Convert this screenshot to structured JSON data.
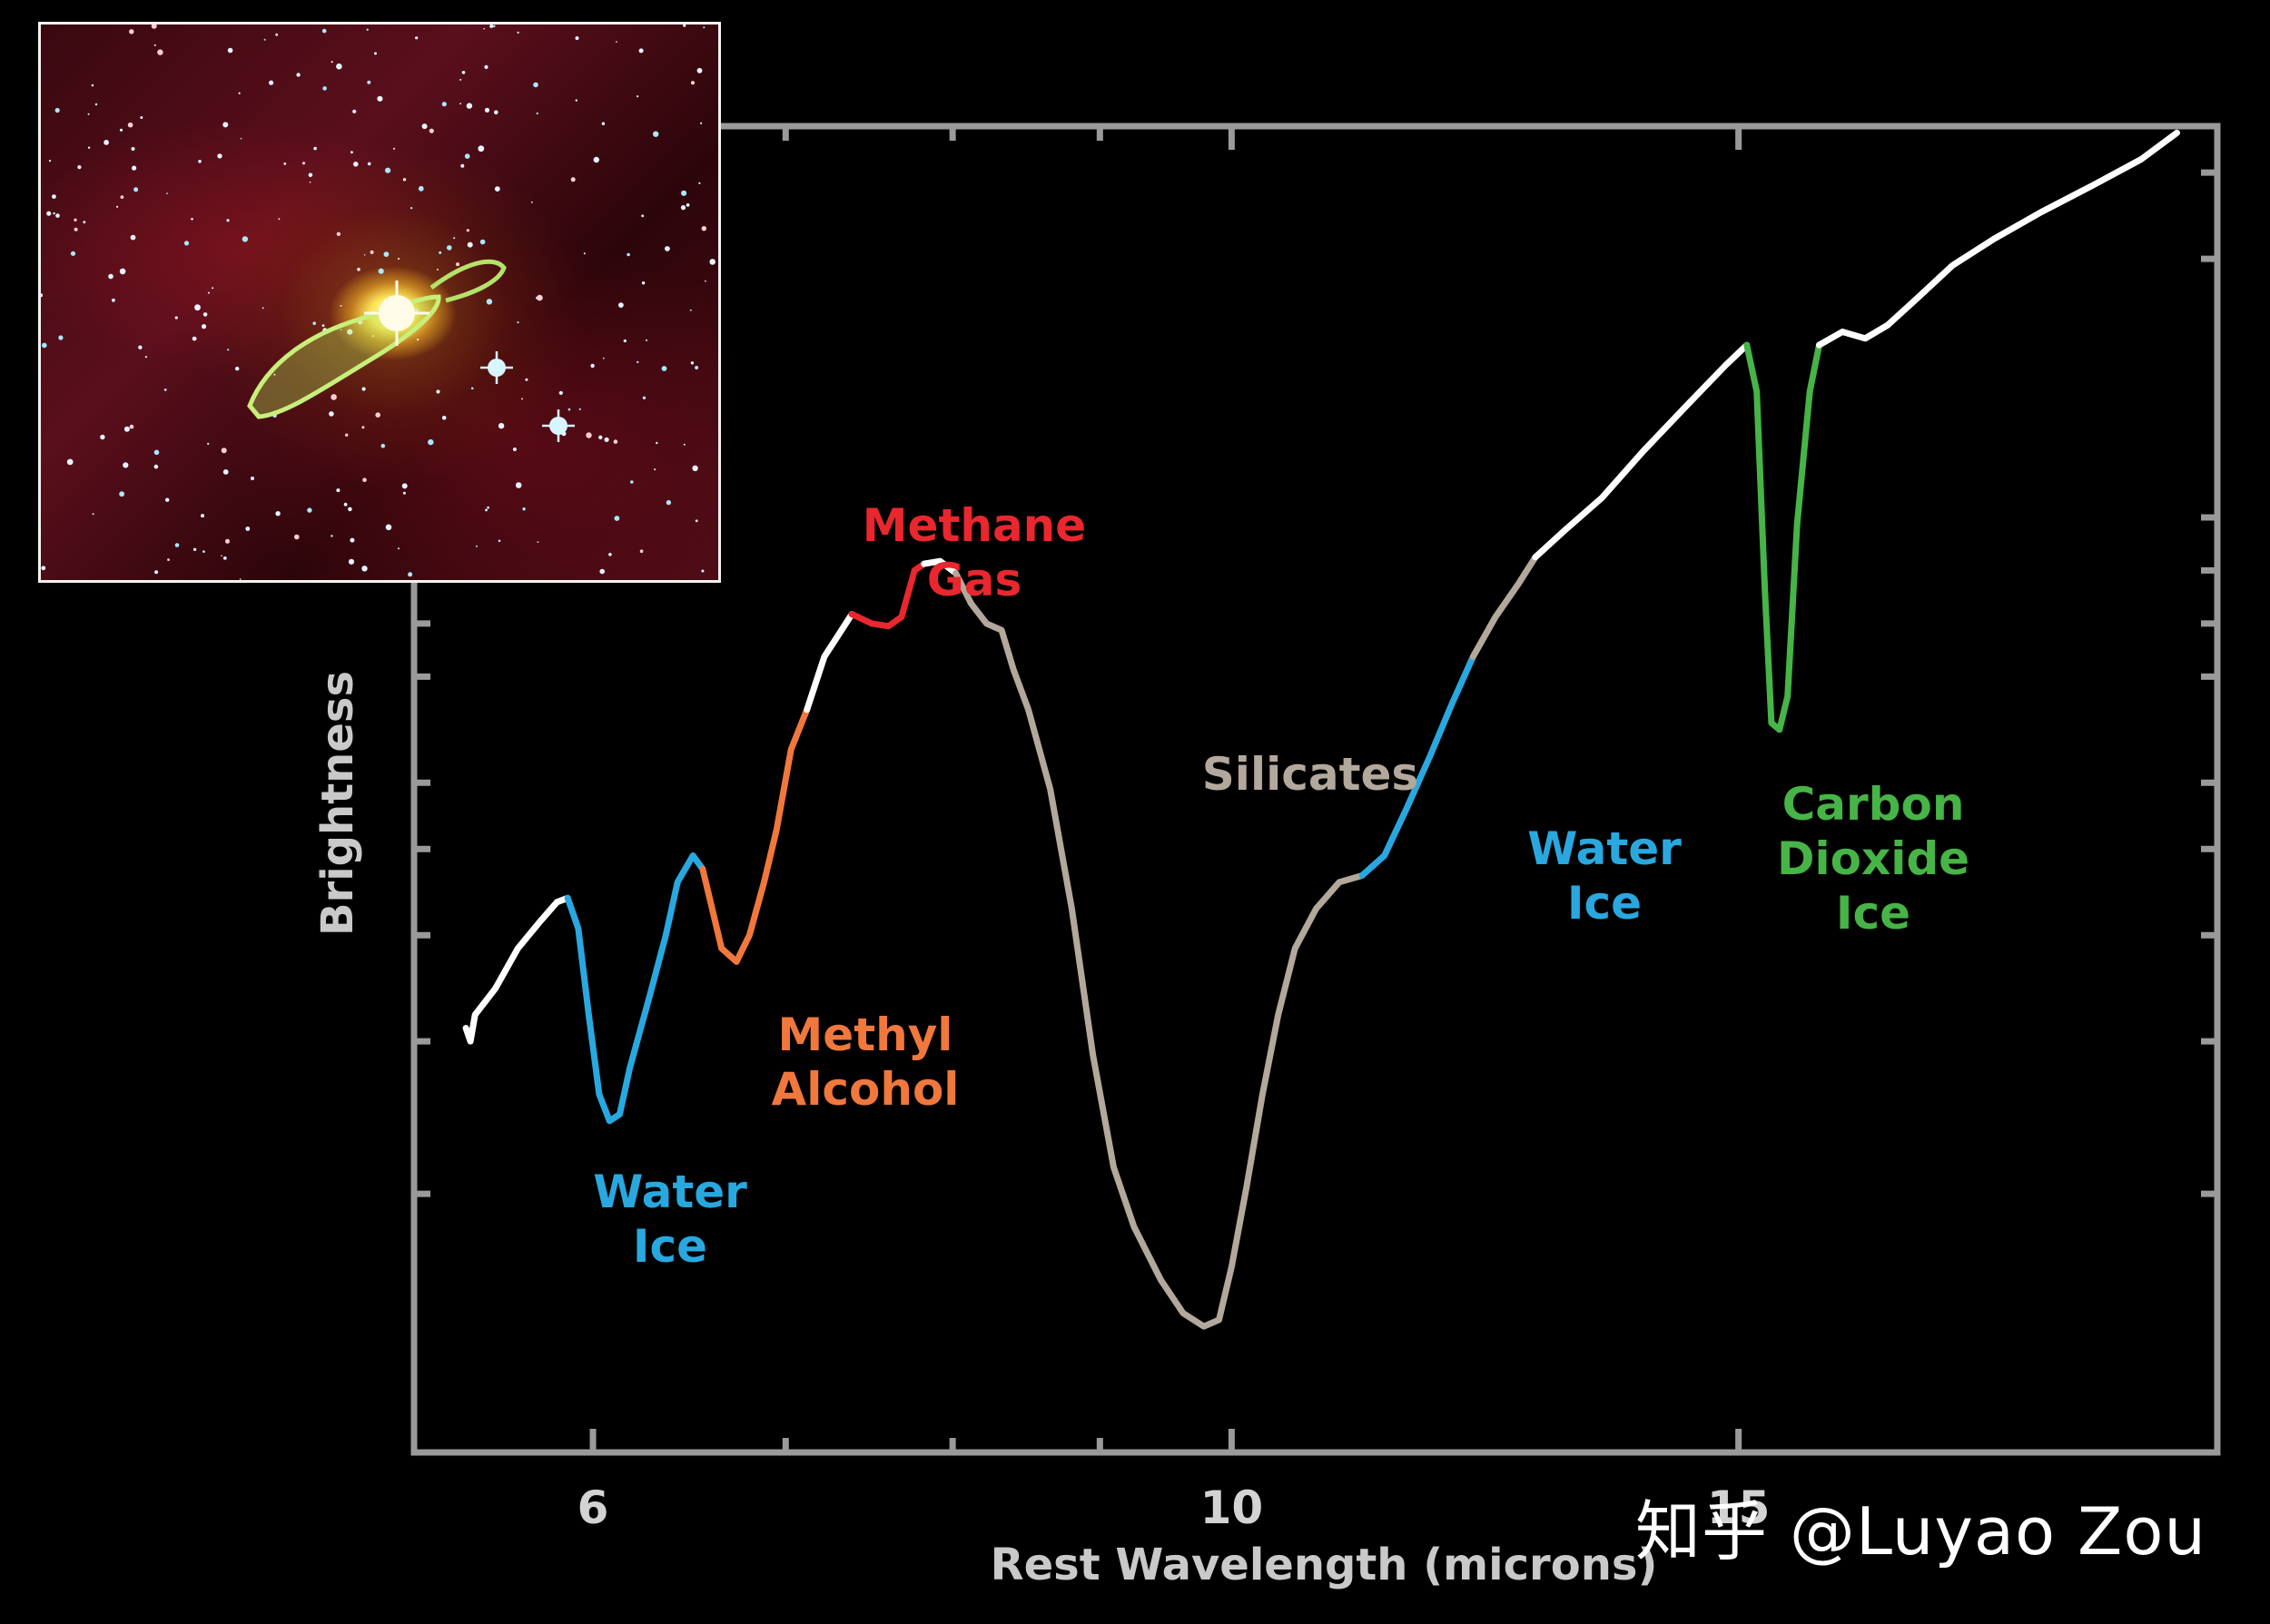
{
  "chart_data": {
    "type": "line",
    "xlabel": "Rest Wavelength (microns)",
    "ylabel": "Brightness",
    "xscale": "log",
    "xlim": [
      5.2,
      22
    ],
    "ylim": [
      0,
      100
    ],
    "grid": false,
    "axis_color": "#9a9a9a",
    "line_color_default": "#ffffff",
    "x_ticks": [
      {
        "value": 6,
        "label": "6"
      },
      {
        "value": 7,
        "label": ""
      },
      {
        "value": 8,
        "label": ""
      },
      {
        "value": 9,
        "label": ""
      },
      {
        "value": 10,
        "label": "10"
      },
      {
        "value": 15,
        "label": "15"
      }
    ],
    "y_ticks_right": [
      19.5,
      31,
      39,
      45.5,
      50.5,
      58.5,
      62.5,
      66.5,
      70.5,
      90,
      96.5
    ],
    "y_ticks_left": [
      19.5,
      31,
      39,
      45.5,
      50.5,
      58.5,
      62.5,
      66.5,
      70.5
    ],
    "series": [
      {
        "color": "#ffffff",
        "points": [
          [
            5.42,
            32
          ],
          [
            5.44,
            31
          ],
          [
            5.46,
            33
          ],
          [
            5.55,
            35
          ],
          [
            5.65,
            38
          ],
          [
            5.75,
            40
          ],
          [
            5.83,
            41.5
          ],
          [
            5.88,
            41.8
          ]
        ]
      },
      {
        "color": "#29a8e0",
        "label": "Water Ice",
        "points": [
          [
            5.88,
            41.8
          ],
          [
            5.93,
            39.5
          ],
          [
            5.98,
            33
          ],
          [
            6.03,
            27
          ],
          [
            6.08,
            25
          ],
          [
            6.13,
            25.5
          ],
          [
            6.18,
            29
          ],
          [
            6.28,
            34.5
          ],
          [
            6.36,
            39
          ],
          [
            6.42,
            43
          ],
          [
            6.5,
            45
          ],
          [
            6.55,
            44
          ]
        ]
      },
      {
        "color": "#f0783c",
        "label": "Methyl Alcohol",
        "points": [
          [
            6.55,
            44
          ],
          [
            6.6,
            41
          ],
          [
            6.65,
            38
          ],
          [
            6.73,
            37
          ],
          [
            6.8,
            39
          ],
          [
            6.88,
            43
          ],
          [
            6.95,
            47
          ],
          [
            7.03,
            53
          ],
          [
            7.12,
            56
          ]
        ]
      },
      {
        "color": "#ffffff",
        "points": [
          [
            7.12,
            56
          ],
          [
            7.22,
            60
          ],
          [
            7.32,
            62
          ],
          [
            7.38,
            63.2
          ]
        ]
      },
      {
        "color": "#e8272e",
        "label": "Methane Gas",
        "points": [
          [
            7.38,
            63.2
          ],
          [
            7.5,
            62.5
          ],
          [
            7.6,
            62.3
          ],
          [
            7.68,
            63
          ],
          [
            7.76,
            66.5
          ],
          [
            7.82,
            67
          ]
        ]
      },
      {
        "color": "#ffffff",
        "points": [
          [
            7.82,
            67
          ],
          [
            7.92,
            67.2
          ],
          [
            8.02,
            66.3
          ]
        ]
      },
      {
        "color": "#b3a89c",
        "label": "Silicates",
        "points": [
          [
            8.02,
            66.3
          ],
          [
            8.12,
            64
          ],
          [
            8.22,
            62.5
          ],
          [
            8.32,
            62
          ],
          [
            8.4,
            59
          ],
          [
            8.5,
            56
          ],
          [
            8.65,
            50
          ],
          [
            8.8,
            41
          ],
          [
            8.95,
            30
          ],
          [
            9.1,
            21.5
          ],
          [
            9.25,
            17
          ],
          [
            9.45,
            13
          ],
          [
            9.62,
            10.5
          ],
          [
            9.78,
            9.5
          ],
          [
            9.9,
            10
          ],
          [
            10.0,
            14
          ],
          [
            10.12,
            20
          ],
          [
            10.25,
            27
          ],
          [
            10.38,
            33
          ],
          [
            10.52,
            38
          ],
          [
            10.7,
            41
          ],
          [
            10.9,
            43
          ],
          [
            11.1,
            43.5
          ]
        ]
      },
      {
        "color": "#29a8e0",
        "label": "Water Ice",
        "points": [
          [
            11.1,
            43.5
          ],
          [
            11.3,
            45
          ],
          [
            11.5,
            48.5
          ],
          [
            11.72,
            52.5
          ],
          [
            11.93,
            56.5
          ],
          [
            12.13,
            60
          ]
        ]
      },
      {
        "color": "#b3a89c",
        "points": [
          [
            12.13,
            60
          ],
          [
            12.35,
            63
          ],
          [
            12.58,
            65.5
          ],
          [
            12.75,
            67.5
          ]
        ]
      },
      {
        "color": "#ffffff",
        "points": [
          [
            12.75,
            67.5
          ],
          [
            13.05,
            69.5
          ],
          [
            13.45,
            72
          ],
          [
            13.9,
            75.5
          ],
          [
            14.4,
            79
          ],
          [
            14.85,
            82
          ],
          [
            15.1,
            83.5
          ]
        ]
      },
      {
        "color": "#46b446",
        "label": "Carbon Dioxide Ice",
        "points": [
          [
            15.1,
            83.5
          ],
          [
            15.22,
            80
          ],
          [
            15.32,
            65
          ],
          [
            15.4,
            55
          ],
          [
            15.5,
            54.5
          ],
          [
            15.6,
            57
          ],
          [
            15.72,
            70
          ],
          [
            15.88,
            80
          ],
          [
            16.0,
            83.5
          ]
        ]
      },
      {
        "color": "#ffffff",
        "points": [
          [
            16.0,
            83.5
          ],
          [
            16.3,
            84.5
          ],
          [
            16.6,
            84
          ],
          [
            16.9,
            85
          ],
          [
            17.3,
            87
          ],
          [
            17.8,
            89.5
          ],
          [
            18.4,
            91.5
          ],
          [
            19.1,
            93.5
          ],
          [
            19.9,
            95.5
          ],
          [
            20.7,
            97.5
          ],
          [
            21.3,
            99.5
          ]
        ]
      }
    ]
  },
  "labels": {
    "water_ice_1": [
      "Water",
      "Ice"
    ],
    "methyl_alcohol": [
      "Methyl",
      "Alcohol"
    ],
    "methane_gas": [
      "Methane",
      "Gas"
    ],
    "silicates": [
      "Silicates"
    ],
    "water_ice_2": [
      "Water",
      "Ice"
    ],
    "carbon_dioxide_ice": [
      "Carbon",
      "Dioxide",
      "Ice"
    ]
  },
  "label_colors": {
    "water_ice_1": "#29a8e0",
    "methyl_alcohol": "#f0783c",
    "methane_gas": "#e8272e",
    "silicates": "#b3a89c",
    "water_ice_2": "#29a8e0",
    "carbon_dioxide_ice": "#46b446"
  },
  "watermark": "知乎 @Luyao Zou"
}
